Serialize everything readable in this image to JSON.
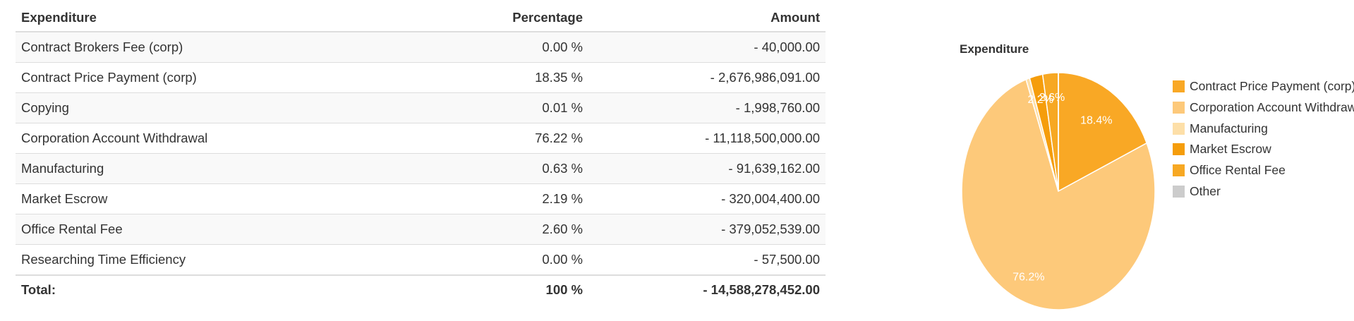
{
  "table": {
    "headers": {
      "expenditure": "Expenditure",
      "percentage": "Percentage",
      "amount": "Amount"
    },
    "rows": [
      {
        "expenditure": "Contract Brokers Fee (corp)",
        "percentage": "0.00 %",
        "amount": "- 40,000.00"
      },
      {
        "expenditure": "Contract Price Payment (corp)",
        "percentage": "18.35 %",
        "amount": "- 2,676,986,091.00"
      },
      {
        "expenditure": "Copying",
        "percentage": "0.01 %",
        "amount": "- 1,998,760.00"
      },
      {
        "expenditure": "Corporation Account Withdrawal",
        "percentage": "76.22 %",
        "amount": "- 11,118,500,000.00"
      },
      {
        "expenditure": "Manufacturing",
        "percentage": "0.63 %",
        "amount": "- 91,639,162.00"
      },
      {
        "expenditure": "Market Escrow",
        "percentage": "2.19 %",
        "amount": "- 320,004,400.00"
      },
      {
        "expenditure": "Office Rental Fee",
        "percentage": "2.60 %",
        "amount": "- 379,052,539.00"
      },
      {
        "expenditure": "Researching Time Efficiency",
        "percentage": "0.00 %",
        "amount": "- 57,500.00"
      }
    ],
    "total": {
      "label": "Total:",
      "percentage": "100 %",
      "amount": "- 14,588,278,452.00"
    }
  },
  "chart_data": {
    "type": "pie",
    "title": "Expenditure",
    "legend_position": "right",
    "slices": [
      {
        "name": "Contract Price Payment (corp)",
        "value": 18.35,
        "color": "#f9a825",
        "label": "18.4%"
      },
      {
        "name": "Corporation Account Withdrawal",
        "value": 76.22,
        "color": "#fdc97a",
        "label": "76.2%"
      },
      {
        "name": "Manufacturing",
        "value": 0.63,
        "color": "#fddfa8",
        "label": ""
      },
      {
        "name": "Market Escrow",
        "value": 2.19,
        "color": "#f59d0b",
        "label": "2.2%"
      },
      {
        "name": "Office Rental Fee",
        "value": 2.6,
        "color": "#f7a823",
        "label": "2.6%"
      },
      {
        "name": "Other",
        "value": 0.01,
        "color": "#cccccc",
        "label": ""
      }
    ]
  }
}
